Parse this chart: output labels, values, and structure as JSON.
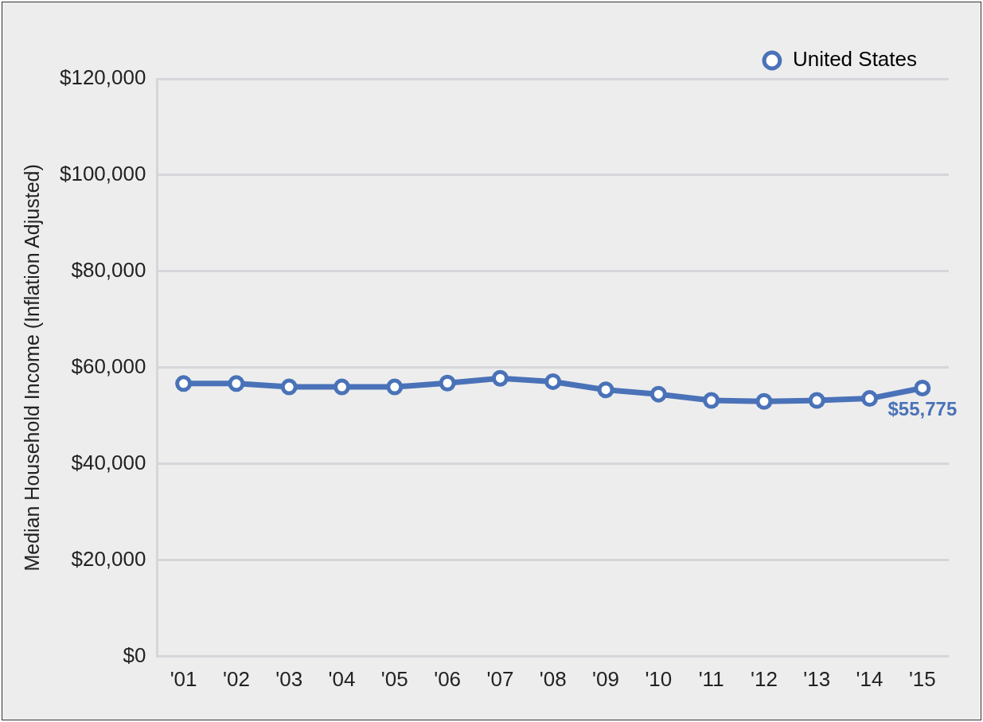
{
  "chart_data": {
    "type": "line",
    "ylabel": "Median Household Income (Inflation Adjusted)",
    "categories": [
      "'01",
      "'02",
      "'03",
      "'04",
      "'05",
      "'06",
      "'07",
      "'08",
      "'09",
      "'10",
      "'11",
      "'12",
      "'13",
      "'14",
      "'15"
    ],
    "series": [
      {
        "name": "United States",
        "color": "#4a72b8",
        "values": [
          56700,
          56700,
          56000,
          56000,
          56000,
          56800,
          57800,
          57100,
          55400,
          54500,
          53200,
          53000,
          53200,
          53600,
          55775
        ]
      }
    ],
    "ylim": [
      0,
      120000
    ],
    "yticks": [
      {
        "value": 0,
        "label": "$0"
      },
      {
        "value": 20000,
        "label": "$20,000"
      },
      {
        "value": 40000,
        "label": "$40,000"
      },
      {
        "value": 60000,
        "label": "$60,000"
      },
      {
        "value": 80000,
        "label": "$80,000"
      },
      {
        "value": 100000,
        "label": "$100,000"
      },
      {
        "value": 120000,
        "label": "$120,000"
      }
    ],
    "grid": "y",
    "legend": "top right",
    "marker": "circle",
    "line_style": "solid",
    "annotations": [
      {
        "text": "$55,775",
        "x": "'15",
        "y": 55775
      }
    ]
  }
}
